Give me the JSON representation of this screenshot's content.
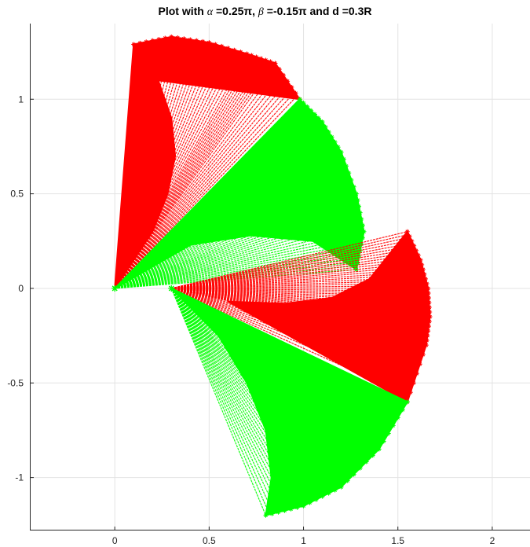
{
  "title": {
    "prefix": "Plot with ",
    "alpha_sym": "α",
    "alpha_val": " =0.25π, ",
    "beta_sym": "β",
    "beta_val": " =-0.15π and d =0.3R"
  },
  "chart_data": {
    "type": "scatter",
    "title": "Plot with α =0.25π, β =-0.15π and d =0.3R",
    "xlabel": "",
    "ylabel": "",
    "xlim": [
      -0.45,
      2.2
    ],
    "ylim": [
      -1.28,
      1.4
    ],
    "grid": true,
    "xticks": [
      0,
      0.5,
      1,
      1.5,
      2
    ],
    "xtick_labels": [
      "0",
      "0.5",
      "1",
      "1.5",
      "2"
    ],
    "yticks": [
      -1,
      -0.5,
      0,
      0.5,
      1
    ],
    "ytick_labels": [
      "-1",
      "-0.5",
      "0",
      "0.5",
      "1"
    ],
    "marker": "*",
    "series": [
      {
        "color": "#ff0000",
        "region": "upper lobe, red",
        "apex": [
          0.0,
          0.0
        ],
        "outer_arc": [
          [
            0.1,
            1.29
          ],
          [
            0.3,
            1.33
          ],
          [
            0.5,
            1.3
          ],
          [
            0.7,
            1.24
          ],
          [
            0.85,
            1.19
          ],
          [
            0.98,
            1.0
          ]
        ],
        "inner_arc": [
          [
            0.1,
            1.29
          ],
          [
            0.23,
            1.1
          ],
          [
            0.3,
            0.9
          ],
          [
            0.32,
            0.7
          ],
          [
            0.28,
            0.5
          ],
          [
            0.2,
            0.3
          ],
          [
            0.0,
            0.0
          ]
        ]
      },
      {
        "color": "#00ff00",
        "region": "upper lobe, green",
        "apex": [
          0.0,
          0.0
        ],
        "outer_arc": [
          [
            0.98,
            1.0
          ],
          [
            1.1,
            0.88
          ],
          [
            1.2,
            0.72
          ],
          [
            1.28,
            0.5
          ],
          [
            1.32,
            0.3
          ],
          [
            1.28,
            0.1
          ]
        ],
        "inner_arc": [
          [
            1.28,
            0.1
          ],
          [
            1.05,
            0.25
          ],
          [
            0.72,
            0.28
          ],
          [
            0.4,
            0.23
          ],
          [
            0.0,
            0.0
          ]
        ]
      },
      {
        "color": "#ff0000",
        "region": "lower lobe, red",
        "apex": [
          0.3,
          0.0
        ],
        "outer_arc": [
          [
            1.55,
            0.3
          ],
          [
            1.62,
            0.15
          ],
          [
            1.66,
            0.0
          ],
          [
            1.67,
            -0.15
          ],
          [
            1.65,
            -0.3
          ],
          [
            1.55,
            -0.6
          ]
        ],
        "inner_arc": [
          [
            0.3,
            0.0
          ],
          [
            0.6,
            -0.07
          ],
          [
            0.9,
            -0.08
          ],
          [
            1.15,
            -0.05
          ],
          [
            1.35,
            0.05
          ],
          [
            1.55,
            0.3
          ]
        ]
      },
      {
        "color": "#00ff00",
        "region": "lower lobe, green",
        "apex": [
          0.3,
          0.0
        ],
        "outer_arc": [
          [
            1.55,
            -0.6
          ],
          [
            1.4,
            -0.85
          ],
          [
            1.2,
            -1.05
          ],
          [
            1.0,
            -1.15
          ],
          [
            0.8,
            -1.2
          ]
        ],
        "inner_arc": [
          [
            0.8,
            -1.2
          ],
          [
            0.83,
            -1.0
          ],
          [
            0.8,
            -0.75
          ],
          [
            0.7,
            -0.5
          ],
          [
            0.55,
            -0.25
          ],
          [
            0.3,
            0.0
          ]
        ]
      }
    ]
  }
}
